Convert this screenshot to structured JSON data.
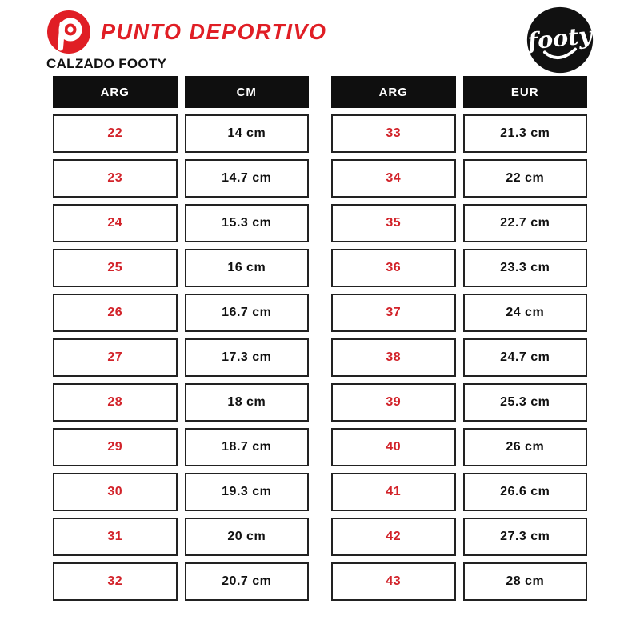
{
  "colors": {
    "brand_red": "#e01e25",
    "accent_red": "#d2232a",
    "table_black": "#0f0f0f"
  },
  "header": {
    "brand_name": "PUNTO DEPORTIVO",
    "page_title": "CALZADO FOOTY",
    "footy_logo_text": "footy"
  },
  "tables": [
    {
      "id": "cm",
      "headers": [
        "ARG",
        "CM"
      ],
      "rows": [
        [
          "22",
          "14 cm"
        ],
        [
          "23",
          "14.7 cm"
        ],
        [
          "24",
          "15.3 cm"
        ],
        [
          "25",
          "16 cm"
        ],
        [
          "26",
          "16.7 cm"
        ],
        [
          "27",
          "17.3 cm"
        ],
        [
          "28",
          "18 cm"
        ],
        [
          "29",
          "18.7 cm"
        ],
        [
          "30",
          "19.3 cm"
        ],
        [
          "31",
          "20 cm"
        ],
        [
          "32",
          "20.7 cm"
        ]
      ]
    },
    {
      "id": "eur",
      "headers": [
        "ARG",
        "EUR"
      ],
      "rows": [
        [
          "33",
          "21.3 cm"
        ],
        [
          "34",
          "22 cm"
        ],
        [
          "35",
          "22.7 cm"
        ],
        [
          "36",
          "23.3 cm"
        ],
        [
          "37",
          "24 cm"
        ],
        [
          "38",
          "24.7 cm"
        ],
        [
          "39",
          "25.3 cm"
        ],
        [
          "40",
          "26 cm"
        ],
        [
          "41",
          "26.6 cm"
        ],
        [
          "42",
          "27.3 cm"
        ],
        [
          "43",
          "28 cm"
        ]
      ]
    }
  ]
}
